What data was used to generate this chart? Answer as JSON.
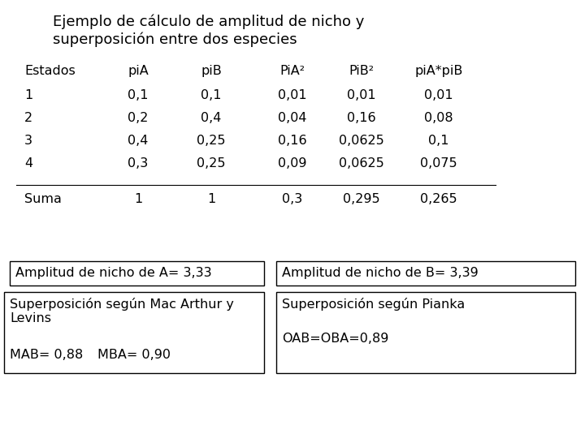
{
  "title_line1": "Ejemplo de cálculo de amplitud de nicho y",
  "title_line2": "superposición entre dos especies",
  "col_headers": [
    "Estados",
    "piA",
    "piB",
    "PiA²",
    "PiB²",
    "piA*piB"
  ],
  "rows": [
    [
      "1",
      "0,1",
      "0,1",
      "0,01",
      "0,01",
      "0,01"
    ],
    [
      "2",
      "0,2",
      "0,4",
      "0,04",
      "0,16",
      "0,08"
    ],
    [
      "3",
      "0,4",
      "0,25",
      "0,16",
      "0,0625",
      "0,1"
    ],
    [
      "4",
      "0,3",
      "0,25",
      "0,09",
      "0,0625",
      "0,075"
    ]
  ],
  "sum_row": [
    "Suma",
    "1",
    "1",
    "0,3",
    "0,295",
    "0,265"
  ],
  "box1_text": "Amplitud de nicho de A= 3,33",
  "box2_text": "Amplitud de nicho de B= 3,39",
  "box3_line1": "Superposición según Mac Arthur y",
  "box3_line2": "Levins",
  "box3_line3a": "MAB= 0,88",
  "box3_line3b": "MBA= 0,90",
  "box4_line1": "Superposición según Pianka",
  "box4_line2": "OAB=OBA=0,89",
  "bg_color": "#ffffff",
  "text_color": "#000000",
  "font_size": 11.5,
  "title_font_size": 13
}
